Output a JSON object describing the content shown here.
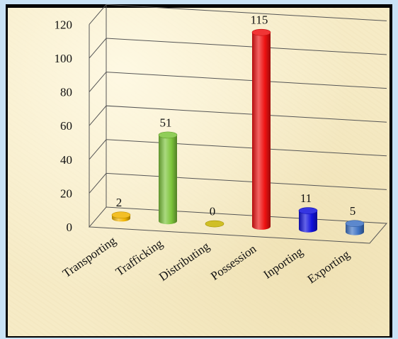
{
  "chart_data": {
    "type": "bar",
    "style": "3d-cylinder",
    "categories": [
      "Transporting",
      "Trafficking",
      "Distributing",
      "Possession",
      "Inporting",
      "Exporting"
    ],
    "values": [
      2,
      51,
      0,
      115,
      11,
      5
    ],
    "data_labels": [
      "2",
      "51",
      "0",
      "115",
      "11",
      "5"
    ],
    "colors": [
      "#f1b400",
      "#7cc43a",
      "#c8b400",
      "#ee1111",
      "#1111dd",
      "#3f73c4"
    ],
    "y_ticks": [
      "0",
      "20",
      "40",
      "60",
      "80",
      "100",
      "120"
    ],
    "ylim": [
      0,
      120
    ],
    "title": "",
    "xlabel": "",
    "ylabel": "",
    "grid": true,
    "legend": "none"
  },
  "theme": {
    "frame_color": "#000000",
    "outer_background": "#c9e2f5",
    "chart_background": "#f6ebc6",
    "grid_color": "#555555"
  }
}
